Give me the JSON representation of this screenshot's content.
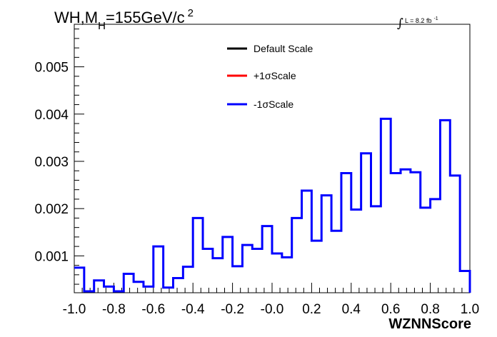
{
  "chart_data": {
    "type": "histogram",
    "title_main": "WH,M",
    "title_sub": "H",
    "title_rest": "=155GeV/c",
    "title_sup": "2",
    "lumi_integral": "∫",
    "lumi_text": "L = 8.2 fb",
    "lumi_sup": "-1",
    "xlabel": "WZNNScore",
    "xlim": [
      -1.0,
      1.0
    ],
    "ylim": [
      0.00022,
      0.0059
    ],
    "x_ticks": [
      -1.0,
      -0.8,
      -0.6,
      -0.4,
      -0.2,
      0.0,
      0.2,
      0.4,
      0.6,
      0.8,
      1.0
    ],
    "x_tick_labels": [
      "-1.0",
      "-0.8",
      "-0.6",
      "-0.4",
      "-0.2",
      "-0.0",
      "0.2",
      "0.4",
      "0.6",
      "0.8",
      "1.0"
    ],
    "y_ticks": [
      0.001,
      0.002,
      0.003,
      0.004,
      0.005
    ],
    "y_tick_labels": [
      "0.001",
      "0.002",
      "0.003",
      "0.004",
      "0.005"
    ],
    "bin_edges_start": -1.0,
    "bin_width": 0.05,
    "legend": [
      {
        "label": "Default Scale",
        "color": "#000000"
      },
      {
        "label": "+1σScale",
        "color": "#ff0000"
      },
      {
        "label": "-1σScale",
        "color": "#0000ff"
      }
    ],
    "series": [
      {
        "name": "-1σScale",
        "color": "#0000ff",
        "values": [
          0.00075,
          0.00025,
          0.00048,
          0.00035,
          0.00025,
          0.00062,
          0.00045,
          0.00035,
          0.0012,
          0.00033,
          0.00053,
          0.00077,
          0.0018,
          0.00115,
          0.00095,
          0.0014,
          0.00078,
          0.00123,
          0.00115,
          0.00163,
          0.00105,
          0.00097,
          0.0018,
          0.00238,
          0.00132,
          0.00228,
          0.00153,
          0.00275,
          0.00198,
          0.00317,
          0.00205,
          0.0039,
          0.00275,
          0.00283,
          0.00277,
          0.00202,
          0.0022,
          0.00387,
          0.0027,
          0.00068
        ]
      }
    ]
  }
}
